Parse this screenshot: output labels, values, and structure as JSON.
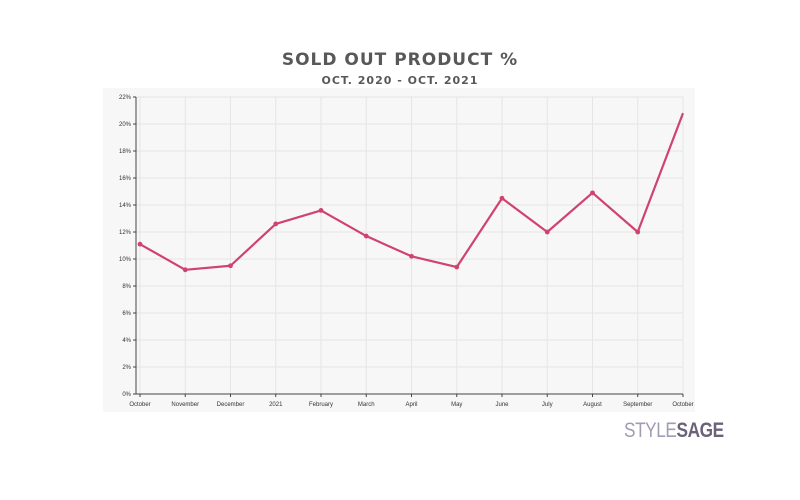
{
  "title": "SOLD OUT PRODUCT %",
  "subtitle": "OCT. 2020 - OCT. 2021",
  "logo": {
    "part1": "STYLE",
    "part2": "SAGE"
  },
  "colors": {
    "line": "#d0436f",
    "plot_background": "#f7f7f7",
    "grid": "#e6e6e6",
    "axis": "#444444",
    "text": "#585858",
    "logo_light": "#a39bb2",
    "logo_dark": "#6a6278"
  },
  "chart_data": {
    "type": "line",
    "title": "SOLD OUT PRODUCT %",
    "subtitle": "OCT. 2020 - OCT. 2021",
    "xlabel": "",
    "ylabel": "",
    "categories": [
      "October",
      "November",
      "December",
      "2021",
      "February",
      "March",
      "April",
      "May",
      "June",
      "July",
      "August",
      "September",
      "October"
    ],
    "series": [
      {
        "values": [
          11.1,
          9.2,
          9.5,
          12.6,
          13.6,
          11.7,
          10.2,
          9.4,
          14.5,
          12.0,
          14.9,
          12.0,
          20.8
        ]
      }
    ],
    "y_ticks": [
      "0%",
      "2%",
      "4%",
      "6%",
      "8%",
      "10%",
      "12%",
      "14%",
      "16%",
      "18%",
      "20%",
      "22%"
    ],
    "ylim": [
      0,
      22
    ],
    "grid": true
  }
}
